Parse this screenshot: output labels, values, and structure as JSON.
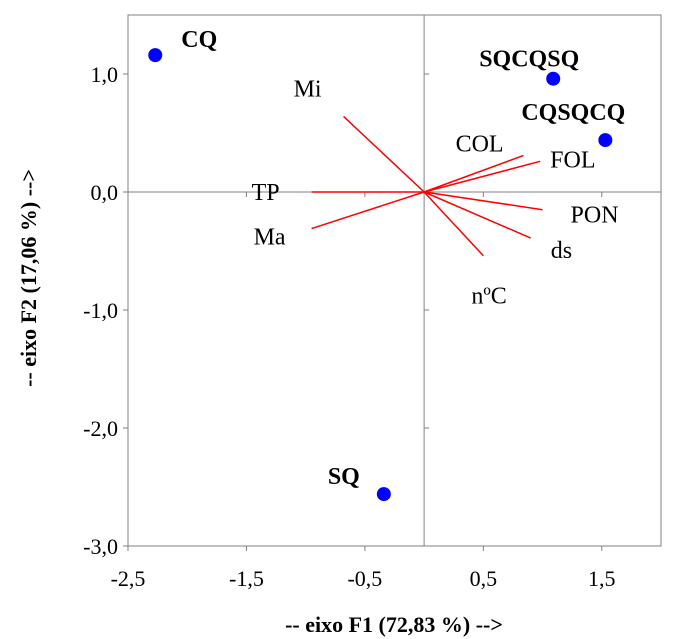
{
  "chart_data": {
    "type": "biplot",
    "xlabel": "-- eixo F1 (72,83 %) -->",
    "ylabel": "-- eixo F2 (17,06 %) -->",
    "xlim": [
      -2.5,
      2.0
    ],
    "ylim": [
      -3.0,
      1.5
    ],
    "x_ticks": [
      -2.5,
      -1.5,
      -0.5,
      0.5,
      1.5
    ],
    "x_tick_labels": [
      "-2,5",
      "-1,5",
      "-0,5",
      "0,5",
      "1,5"
    ],
    "y_ticks": [
      -3.0,
      -2.0,
      -1.0,
      0.0,
      1.0
    ],
    "y_tick_labels": [
      "-3,0",
      "-2,0",
      "-1,0",
      "0,0",
      "1,0"
    ],
    "points": [
      {
        "label": "CQ",
        "x": -2.27,
        "y": 1.16
      },
      {
        "label": "SQCQSQ",
        "x": 1.09,
        "y": 0.96
      },
      {
        "label": "CQSQCQ",
        "x": 1.53,
        "y": 0.44
      },
      {
        "label": "SQ",
        "x": -0.34,
        "y": -2.56
      }
    ],
    "vectors": [
      {
        "label": "Mi",
        "x": -0.68,
        "y": 0.64
      },
      {
        "label": "TP",
        "x": -0.95,
        "y": 0.0
      },
      {
        "label": "Ma",
        "x": -0.95,
        "y": -0.31
      },
      {
        "label": "COL",
        "x": 0.84,
        "y": 0.31
      },
      {
        "label": "FOL",
        "x": 0.98,
        "y": 0.26
      },
      {
        "label": "PON",
        "x": 1.0,
        "y": -0.15
      },
      {
        "label": "ds",
        "x": 0.9,
        "y": -0.39
      },
      {
        "label": "nºC",
        "x": 0.5,
        "y": -0.54
      }
    ],
    "point_color": "#0000ff",
    "vector_color": "#ff0000",
    "grid": false
  }
}
